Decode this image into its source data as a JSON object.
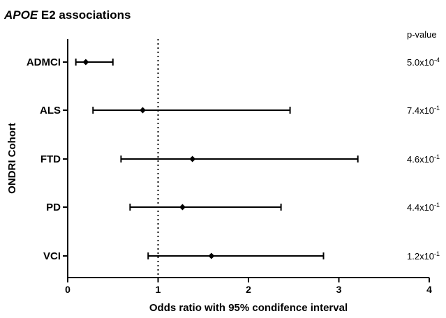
{
  "chart_data": {
    "type": "forest",
    "title_italic": "APOE",
    "title_rest": " E2 associations",
    "xlabel": "Odds ratio with 95% condifence interval",
    "ylabel": "ONDRI Cohort",
    "xlim": [
      0,
      4
    ],
    "xticks": [
      0,
      1,
      2,
      3,
      4
    ],
    "reference_line": 1,
    "pvalue_header": "p-value",
    "rows": [
      {
        "label": "ADMCI",
        "or": 0.2,
        "lower": 0.09,
        "upper": 0.5,
        "p_mantissa": "5.0",
        "p_exp": "-4"
      },
      {
        "label": "ALS",
        "or": 0.83,
        "lower": 0.28,
        "upper": 2.46,
        "p_mantissa": "7.4",
        "p_exp": "-1"
      },
      {
        "label": "FTD",
        "or": 1.38,
        "lower": 0.59,
        "upper": 3.21,
        "p_mantissa": "4.6",
        "p_exp": "-1"
      },
      {
        "label": "PD",
        "or": 1.27,
        "lower": 0.69,
        "upper": 2.36,
        "p_mantissa": "4.4",
        "p_exp": "-1"
      },
      {
        "label": "VCI",
        "or": 1.59,
        "lower": 0.89,
        "upper": 2.83,
        "p_mantissa": "1.2",
        "p_exp": "-1"
      }
    ]
  }
}
